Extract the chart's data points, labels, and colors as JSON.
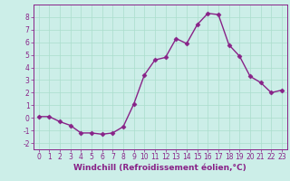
{
  "x": [
    0,
    1,
    2,
    3,
    4,
    5,
    6,
    7,
    8,
    9,
    10,
    11,
    12,
    13,
    14,
    15,
    16,
    17,
    18,
    19,
    20,
    21,
    22,
    23
  ],
  "y": [
    0.1,
    0.1,
    -0.3,
    -0.6,
    -1.2,
    -1.2,
    -1.3,
    -1.2,
    -0.7,
    1.1,
    3.4,
    4.6,
    4.8,
    6.3,
    5.9,
    7.4,
    8.3,
    8.2,
    5.8,
    4.9,
    3.3,
    2.8,
    2.0,
    2.2
  ],
  "line_color": "#882288",
  "marker": "D",
  "markersize": 2.5,
  "linewidth": 1.0,
  "xlabel": "Windchill (Refroidissement éolien,°C)",
  "xlabel_fontsize": 6.5,
  "xlim": [
    -0.5,
    23.5
  ],
  "ylim": [
    -2.5,
    9.0
  ],
  "yticks": [
    -2,
    -1,
    0,
    1,
    2,
    3,
    4,
    5,
    6,
    7,
    8
  ],
  "xticks": [
    0,
    1,
    2,
    3,
    4,
    5,
    6,
    7,
    8,
    9,
    10,
    11,
    12,
    13,
    14,
    15,
    16,
    17,
    18,
    19,
    20,
    21,
    22,
    23
  ],
  "bg_color": "#cceee8",
  "grid_color": "#aaddcc",
  "line_purple": "#882288",
  "tick_fontsize": 5.5,
  "spine_color": "#882288"
}
